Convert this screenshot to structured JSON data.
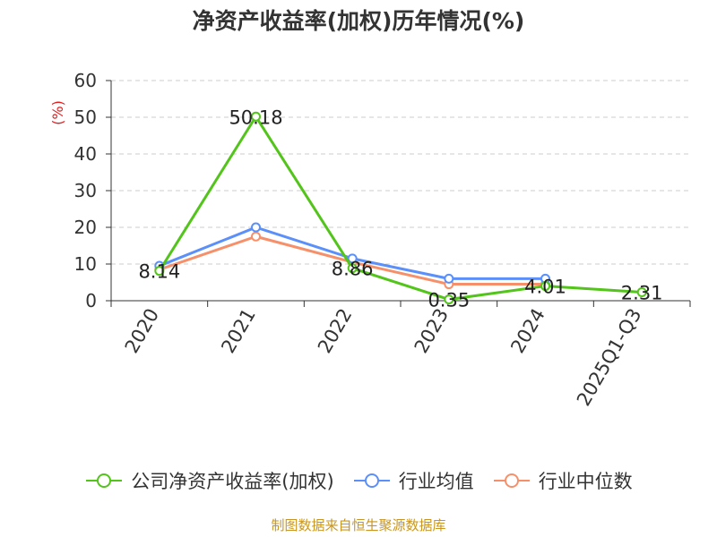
{
  "title": "净资产收益率(加权)历年情况(%)",
  "footer": "制图数据来自恒生聚源数据库",
  "colors": {
    "series_green": "#52c41a",
    "series_blue": "#5b8ff9",
    "series_orange": "#f6906a",
    "unit_red": "#e02020",
    "footer_gold": "#c8961e",
    "grid": "#cccccc",
    "axis": "#333333"
  },
  "chart_data": {
    "type": "line",
    "title": "净资产收益率(加权)历年情况(%)",
    "ylabel": "(%)",
    "categories": [
      "2020",
      "2021",
      "2022",
      "2023",
      "2024",
      "2025Q1-Q3"
    ],
    "yticks": [
      0,
      10,
      20,
      30,
      40,
      50,
      60
    ],
    "ylim": [
      0,
      60
    ],
    "grid": true,
    "legend_position": "bottom",
    "series": [
      {
        "name": "公司净资产收益率(加权)",
        "color": "#52c41a",
        "values": [
          8.14,
          50.18,
          8.86,
          0.35,
          4.01,
          2.31
        ],
        "labels": [
          "8.14",
          "50.18",
          "8.86",
          "0.35",
          "4.01",
          "2.31"
        ]
      },
      {
        "name": "行业均值",
        "color": "#5b8ff9",
        "values": [
          9.5,
          20.0,
          11.5,
          6.0,
          6.0,
          null
        ]
      },
      {
        "name": "行业中位数",
        "color": "#f6906a",
        "values": [
          8.5,
          17.5,
          10.5,
          4.5,
          4.5,
          null
        ]
      }
    ]
  }
}
